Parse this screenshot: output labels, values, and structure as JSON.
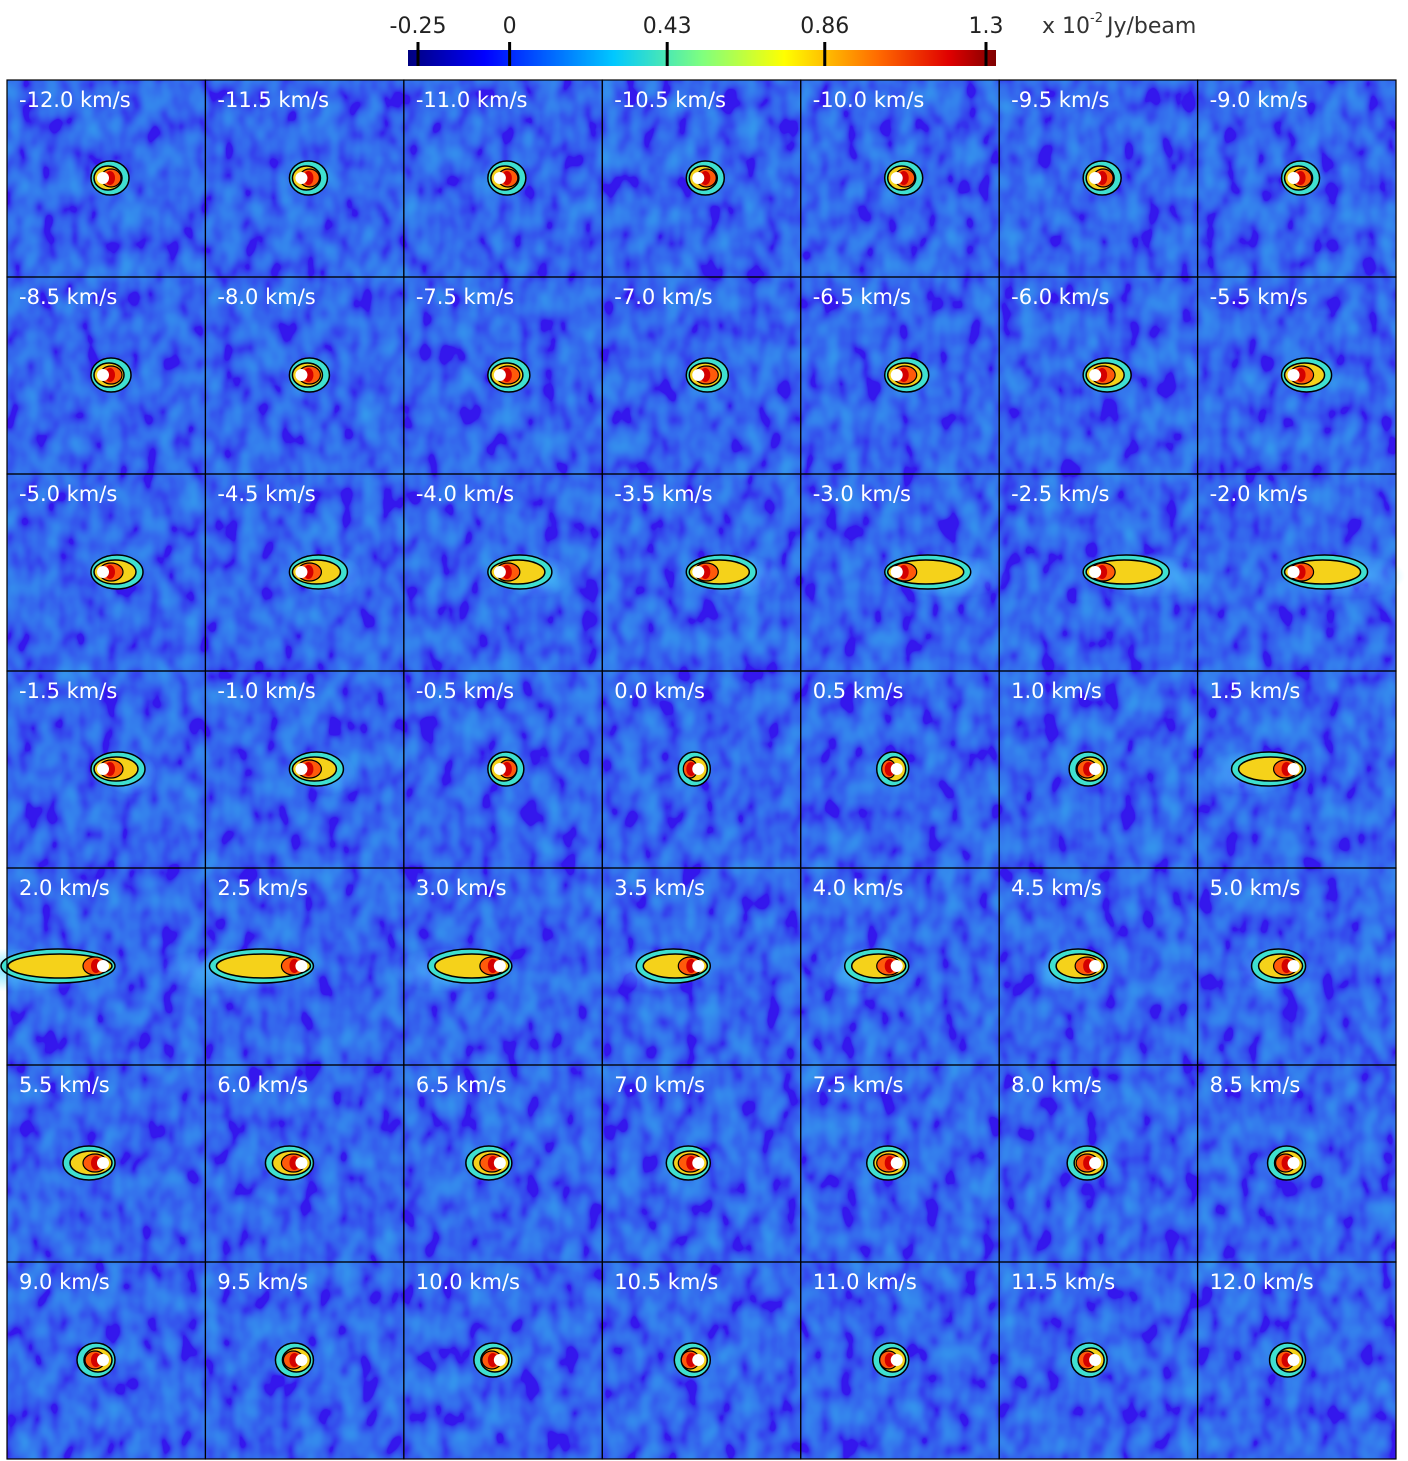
{
  "colorbar": {
    "ticks": [
      -0.25,
      0,
      0.43,
      0.86,
      1.3
    ],
    "range": [
      -0.25,
      1.3
    ],
    "unit": {
      "prefix": "x 10",
      "exponent": "-2",
      "unit": "Jy/beam"
    }
  },
  "panels": [
    "-12.0 km/s",
    "-11.5 km/s",
    "-11.0 km/s",
    "-10.5 km/s",
    "-10.0 km/s",
    "-9.5 km/s",
    "-9.0 km/s",
    "-8.5 km/s",
    "-8.0 km/s",
    "-7.5 km/s",
    "-7.0 km/s",
    "-6.5 km/s",
    "-6.0 km/s",
    "-5.5 km/s",
    "-5.0 km/s",
    "-4.5 km/s",
    "-4.0 km/s",
    "-3.5 km/s",
    "-3.0 km/s",
    "-2.5 km/s",
    "-2.0 km/s",
    "-1.5 km/s",
    "-1.0 km/s",
    "-0.5 km/s",
    "0.0 km/s",
    "0.5 km/s",
    "1.0 km/s",
    "1.5 km/s",
    "2.0 km/s",
    "2.5 km/s",
    "3.0 km/s",
    "3.5 km/s",
    "4.0 km/s",
    "4.5 km/s",
    "5.0 km/s",
    "5.5 km/s",
    "6.0 km/s",
    "6.5 km/s",
    "7.0 km/s",
    "7.5 km/s",
    "8.0 km/s",
    "8.5 km/s",
    "9.0 km/s",
    "9.5 km/s",
    "10.0 km/s",
    "10.5 km/s",
    "11.0 km/s",
    "11.5 km/s",
    "12.0 km/s"
  ]
}
